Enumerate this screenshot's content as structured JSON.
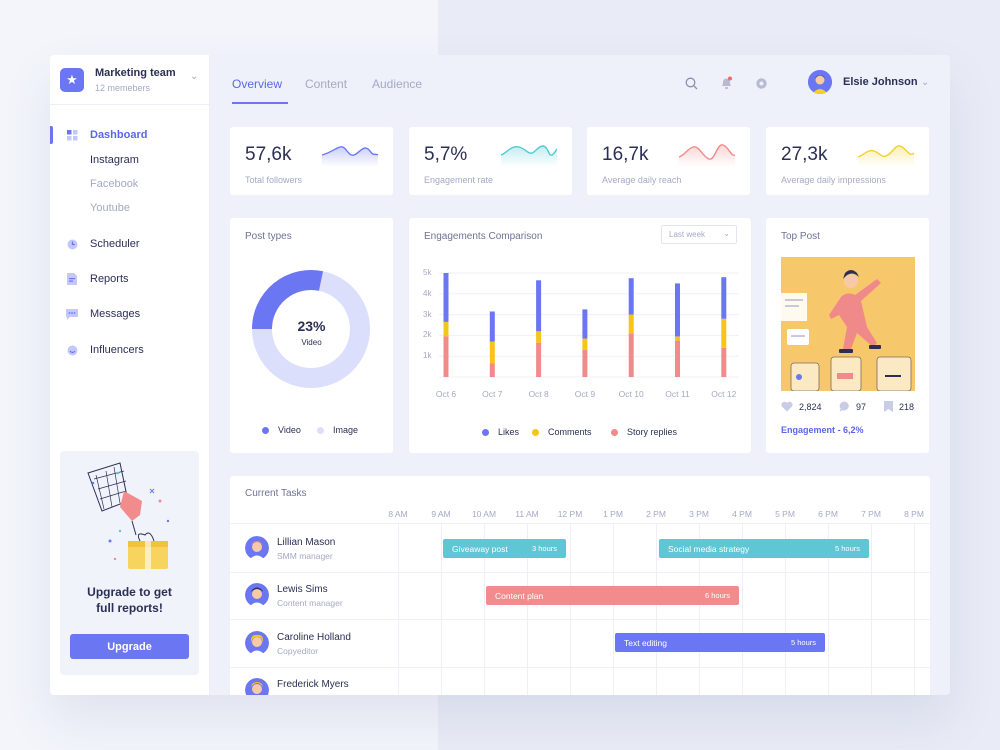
{
  "team": {
    "name": "Marketing team",
    "members": "12 memebers"
  },
  "nav": {
    "dashboard": "Dashboard",
    "sub_items": [
      "Instagram",
      "Facebook",
      "Youtube"
    ],
    "scheduler": "Scheduler",
    "reports": "Reports",
    "messages": "Messages",
    "influencers": "Influencers"
  },
  "upgrade": {
    "title_line1": "Upgrade to get",
    "title_line2": "full reports!",
    "button": "Upgrade"
  },
  "tabs": [
    "Overview",
    "Content",
    "Audience"
  ],
  "user": {
    "name": "Elsie Johnson"
  },
  "stats": [
    {
      "value": "57,6k",
      "label": "Total followers",
      "color": "#6b76f2"
    },
    {
      "value": "5,7%",
      "label": "Engagement rate",
      "color": "#52c9d6"
    },
    {
      "value": "16,7k",
      "label": "Average daily reach",
      "color": "#f18a8a"
    },
    {
      "value": "27,3k",
      "label": "Average daily impressions",
      "color": "#f5d029"
    }
  ],
  "post_types": {
    "title": "Post types",
    "center_value": "23%",
    "center_label": "Video",
    "legend": [
      "Video",
      "Image"
    ],
    "colors": {
      "video": "#6b76f2",
      "image": "#dcdffb"
    }
  },
  "engagements": {
    "title": "Engagements Comparison",
    "filter": "Last week",
    "legend": [
      "Likes",
      "Comments",
      "Story replies"
    ]
  },
  "chart_data": {
    "type": "bar",
    "stacked": true,
    "categories": [
      "Oct 6",
      "Oct 7",
      "Oct 8",
      "Oct 9",
      "Oct 10",
      "Oct 11",
      "Oct 12"
    ],
    "y_ticks": [
      "1k",
      "2k",
      "3k",
      "4k",
      "5k"
    ],
    "ylim": [
      0,
      5000
    ],
    "grid": true,
    "legend_position": "bottom",
    "series": [
      {
        "name": "Story replies",
        "color": "#f18a8a",
        "values": [
          1950,
          650,
          1650,
          1300,
          2100,
          1750,
          1400
        ]
      },
      {
        "name": "Comments",
        "color": "#f5c518",
        "values": [
          700,
          1050,
          550,
          550,
          900,
          200,
          1400
        ]
      },
      {
        "name": "Likes",
        "color": "#6b76f2",
        "values": [
          2350,
          1450,
          2450,
          1400,
          1750,
          2550,
          2000
        ]
      }
    ]
  },
  "top_post": {
    "title": "Top Post",
    "likes": "2,824",
    "comments": "97",
    "saves": "218",
    "engagement": "Engagement - 6,2%"
  },
  "tasks": {
    "title": "Current Tasks",
    "times": [
      "8 AM",
      "9 AM",
      "10 AM",
      "11 AM",
      "12 PM",
      "1 PM",
      "2 PM",
      "3 PM",
      "4 PM",
      "5 PM",
      "6 PM",
      "7 PM",
      "8 PM"
    ],
    "people": [
      {
        "name": "Lillian Mason",
        "role": "SMM manager"
      },
      {
        "name": "Lewis Sims",
        "role": "Content manager"
      },
      {
        "name": "Caroline Holland",
        "role": "Copyeditor"
      },
      {
        "name": "Frederick Myers",
        "role": ""
      }
    ],
    "bars": [
      {
        "label": "Giveaway post",
        "hours": "3 hours",
        "color": "#5ec7d3"
      },
      {
        "label": "Social media strategy",
        "hours": "5 hours",
        "color": "#5ec7d3"
      },
      {
        "label": "Content plan",
        "hours": "6 hours",
        "color": "#f28b8b"
      },
      {
        "label": "Text editing",
        "hours": "5 hours",
        "color": "#6b76f2"
      }
    ]
  }
}
